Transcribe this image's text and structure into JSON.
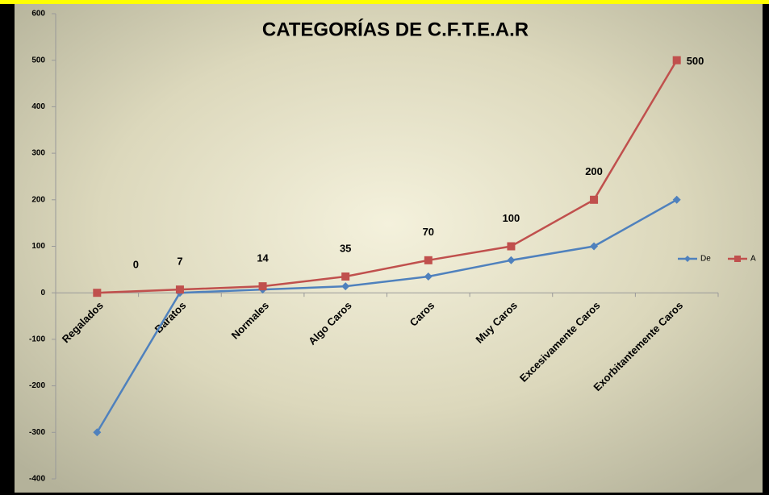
{
  "chart_data": {
    "type": "line",
    "title": "CATEGORÍAS DE C.F.T.E.A.R",
    "categories": [
      "Regalados",
      "Baratos",
      "Normales",
      "Algo Caros",
      "Caros",
      "Muy Caros",
      "Excesivamente Caros",
      "Exorbitantemente Caros"
    ],
    "series": [
      {
        "name": "De",
        "color": "#4f81bd",
        "values": [
          -300,
          0,
          7,
          14,
          35,
          70,
          100,
          200
        ]
      },
      {
        "name": "A",
        "color": "#c0504d",
        "values": [
          0,
          7,
          14,
          35,
          70,
          100,
          200,
          500
        ]
      }
    ],
    "ylim": [
      -400,
      600
    ],
    "yticks": [
      -400,
      -300,
      -200,
      -100,
      0,
      100,
      200,
      300,
      400,
      500,
      600
    ],
    "legend": "right",
    "data_labels_series": 1
  }
}
